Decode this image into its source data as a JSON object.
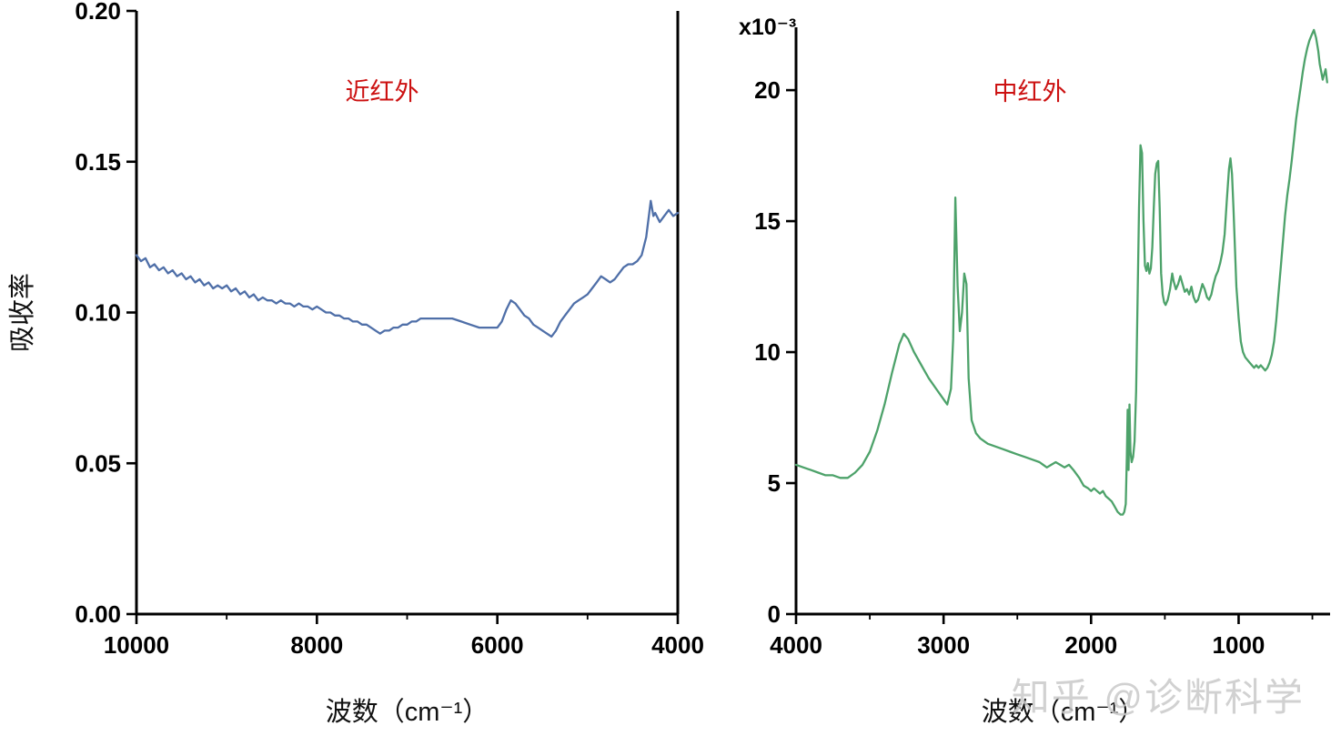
{
  "watermark": {
    "text": "知乎 @诊断科学"
  },
  "chart_data": [
    {
      "type": "line",
      "title": "近红外",
      "title_color": "#cc1111",
      "line_color": "#4f6fa8",
      "xlabel": "波数（cm⁻¹）",
      "ylabel": "吸收率",
      "xlim": [
        10000,
        4000
      ],
      "ylim": [
        0,
        0.2
      ],
      "x_ticks": [
        10000,
        8000,
        6000,
        4000
      ],
      "x_tick_labels": [
        "10000",
        "8000",
        "6000",
        "4000"
      ],
      "x_minor_ticks": [
        9000,
        7000,
        5000
      ],
      "y_ticks": [
        0,
        0.05,
        0.1,
        0.15,
        0.2
      ],
      "y_tick_labels": [
        "0.00",
        "0.05",
        "0.10",
        "0.15",
        "0.20"
      ],
      "points": [
        [
          10000,
          0.119
        ],
        [
          9950,
          0.117
        ],
        [
          9900,
          0.118
        ],
        [
          9850,
          0.115
        ],
        [
          9800,
          0.116
        ],
        [
          9750,
          0.114
        ],
        [
          9700,
          0.115
        ],
        [
          9650,
          0.113
        ],
        [
          9600,
          0.114
        ],
        [
          9550,
          0.112
        ],
        [
          9500,
          0.113
        ],
        [
          9450,
          0.111
        ],
        [
          9400,
          0.112
        ],
        [
          9350,
          0.11
        ],
        [
          9300,
          0.111
        ],
        [
          9250,
          0.109
        ],
        [
          9200,
          0.11
        ],
        [
          9150,
          0.108
        ],
        [
          9100,
          0.109
        ],
        [
          9050,
          0.108
        ],
        [
          9000,
          0.109
        ],
        [
          8950,
          0.107
        ],
        [
          8900,
          0.108
        ],
        [
          8850,
          0.106
        ],
        [
          8800,
          0.107
        ],
        [
          8750,
          0.105
        ],
        [
          8700,
          0.106
        ],
        [
          8650,
          0.104
        ],
        [
          8600,
          0.105
        ],
        [
          8550,
          0.104
        ],
        [
          8500,
          0.104
        ],
        [
          8450,
          0.103
        ],
        [
          8400,
          0.104
        ],
        [
          8350,
          0.103
        ],
        [
          8300,
          0.103
        ],
        [
          8250,
          0.102
        ],
        [
          8200,
          0.103
        ],
        [
          8150,
          0.102
        ],
        [
          8100,
          0.102
        ],
        [
          8050,
          0.101
        ],
        [
          8000,
          0.102
        ],
        [
          7950,
          0.101
        ],
        [
          7900,
          0.1
        ],
        [
          7850,
          0.1
        ],
        [
          7800,
          0.099
        ],
        [
          7750,
          0.099
        ],
        [
          7700,
          0.098
        ],
        [
          7650,
          0.098
        ],
        [
          7600,
          0.097
        ],
        [
          7550,
          0.097
        ],
        [
          7500,
          0.096
        ],
        [
          7450,
          0.096
        ],
        [
          7400,
          0.095
        ],
        [
          7350,
          0.094
        ],
        [
          7300,
          0.093
        ],
        [
          7250,
          0.094
        ],
        [
          7200,
          0.094
        ],
        [
          7150,
          0.095
        ],
        [
          7100,
          0.095
        ],
        [
          7050,
          0.096
        ],
        [
          7000,
          0.096
        ],
        [
          6950,
          0.097
        ],
        [
          6900,
          0.097
        ],
        [
          6850,
          0.098
        ],
        [
          6800,
          0.098
        ],
        [
          6700,
          0.098
        ],
        [
          6600,
          0.098
        ],
        [
          6500,
          0.098
        ],
        [
          6400,
          0.097
        ],
        [
          6300,
          0.096
        ],
        [
          6200,
          0.095
        ],
        [
          6100,
          0.095
        ],
        [
          6000,
          0.095
        ],
        [
          5950,
          0.097
        ],
        [
          5900,
          0.101
        ],
        [
          5850,
          0.104
        ],
        [
          5800,
          0.103
        ],
        [
          5750,
          0.101
        ],
        [
          5700,
          0.099
        ],
        [
          5650,
          0.098
        ],
        [
          5600,
          0.096
        ],
        [
          5550,
          0.095
        ],
        [
          5500,
          0.094
        ],
        [
          5450,
          0.093
        ],
        [
          5400,
          0.092
        ],
        [
          5350,
          0.094
        ],
        [
          5300,
          0.097
        ],
        [
          5250,
          0.099
        ],
        [
          5200,
          0.101
        ],
        [
          5150,
          0.103
        ],
        [
          5100,
          0.104
        ],
        [
          5050,
          0.105
        ],
        [
          5000,
          0.106
        ],
        [
          4950,
          0.108
        ],
        [
          4900,
          0.11
        ],
        [
          4850,
          0.112
        ],
        [
          4800,
          0.111
        ],
        [
          4750,
          0.11
        ],
        [
          4700,
          0.111
        ],
        [
          4650,
          0.113
        ],
        [
          4600,
          0.115
        ],
        [
          4550,
          0.116
        ],
        [
          4500,
          0.116
        ],
        [
          4450,
          0.117
        ],
        [
          4400,
          0.119
        ],
        [
          4350,
          0.125
        ],
        [
          4300,
          0.137
        ],
        [
          4270,
          0.132
        ],
        [
          4250,
          0.133
        ],
        [
          4200,
          0.13
        ],
        [
          4150,
          0.132
        ],
        [
          4100,
          0.134
        ],
        [
          4050,
          0.132
        ],
        [
          4000,
          0.133
        ]
      ]
    },
    {
      "type": "line",
      "title": "中红外",
      "title_color": "#cc1111",
      "line_color": "#4da26a",
      "xlabel": "波数（cm⁻¹）",
      "scale_label": "x10⁻³",
      "xlim": [
        4000,
        380
      ],
      "ylim": [
        0,
        22.4
      ],
      "x_ticks": [
        4000,
        3000,
        2000,
        1000
      ],
      "x_tick_labels": [
        "4000",
        "3000",
        "2000",
        "1000"
      ],
      "x_minor_ticks": [
        3500,
        2500,
        1500,
        500
      ],
      "y_ticks": [
        0,
        5,
        10,
        15,
        20
      ],
      "y_tick_labels": [
        "0",
        "5",
        "10",
        "15",
        "20"
      ],
      "points": [
        [
          4000,
          5.7
        ],
        [
          3950,
          5.6
        ],
        [
          3900,
          5.5
        ],
        [
          3850,
          5.4
        ],
        [
          3800,
          5.3
        ],
        [
          3750,
          5.3
        ],
        [
          3700,
          5.2
        ],
        [
          3650,
          5.2
        ],
        [
          3600,
          5.4
        ],
        [
          3550,
          5.7
        ],
        [
          3500,
          6.2
        ],
        [
          3450,
          7.0
        ],
        [
          3400,
          8.0
        ],
        [
          3350,
          9.2
        ],
        [
          3300,
          10.3
        ],
        [
          3270,
          10.7
        ],
        [
          3240,
          10.5
        ],
        [
          3200,
          10.0
        ],
        [
          3150,
          9.5
        ],
        [
          3100,
          9.0
        ],
        [
          3050,
          8.6
        ],
        [
          3000,
          8.2
        ],
        [
          2975,
          8.0
        ],
        [
          2950,
          8.6
        ],
        [
          2935,
          10.5
        ],
        [
          2920,
          15.9
        ],
        [
          2905,
          12.5
        ],
        [
          2890,
          10.8
        ],
        [
          2875,
          11.5
        ],
        [
          2860,
          13.0
        ],
        [
          2845,
          12.6
        ],
        [
          2830,
          9.0
        ],
        [
          2810,
          7.4
        ],
        [
          2780,
          6.9
        ],
        [
          2750,
          6.7
        ],
        [
          2700,
          6.5
        ],
        [
          2650,
          6.4
        ],
        [
          2600,
          6.3
        ],
        [
          2550,
          6.2
        ],
        [
          2500,
          6.1
        ],
        [
          2450,
          6.0
        ],
        [
          2400,
          5.9
        ],
        [
          2350,
          5.8
        ],
        [
          2300,
          5.6
        ],
        [
          2270,
          5.7
        ],
        [
          2240,
          5.8
        ],
        [
          2210,
          5.7
        ],
        [
          2180,
          5.6
        ],
        [
          2150,
          5.7
        ],
        [
          2120,
          5.5
        ],
        [
          2080,
          5.2
        ],
        [
          2050,
          4.9
        ],
        [
          2020,
          4.8
        ],
        [
          2000,
          4.7
        ],
        [
          1980,
          4.8
        ],
        [
          1960,
          4.7
        ],
        [
          1940,
          4.6
        ],
        [
          1920,
          4.7
        ],
        [
          1900,
          4.5
        ],
        [
          1880,
          4.4
        ],
        [
          1860,
          4.3
        ],
        [
          1840,
          4.1
        ],
        [
          1820,
          3.9
        ],
        [
          1800,
          3.8
        ],
        [
          1785,
          3.8
        ],
        [
          1775,
          3.9
        ],
        [
          1765,
          4.2
        ],
        [
          1758,
          6.0
        ],
        [
          1752,
          7.8
        ],
        [
          1746,
          5.5
        ],
        [
          1740,
          8.0
        ],
        [
          1733,
          6.2
        ],
        [
          1725,
          5.8
        ],
        [
          1715,
          6.0
        ],
        [
          1705,
          6.6
        ],
        [
          1695,
          8.5
        ],
        [
          1685,
          12.0
        ],
        [
          1675,
          15.5
        ],
        [
          1665,
          17.9
        ],
        [
          1655,
          17.6
        ],
        [
          1645,
          15.0
        ],
        [
          1635,
          13.3
        ],
        [
          1625,
          13.1
        ],
        [
          1615,
          13.4
        ],
        [
          1605,
          13.0
        ],
        [
          1595,
          13.2
        ],
        [
          1585,
          14.0
        ],
        [
          1575,
          15.5
        ],
        [
          1565,
          16.8
        ],
        [
          1555,
          17.2
        ],
        [
          1545,
          17.3
        ],
        [
          1535,
          15.5
        ],
        [
          1525,
          13.0
        ],
        [
          1515,
          12.2
        ],
        [
          1505,
          11.9
        ],
        [
          1495,
          11.8
        ],
        [
          1480,
          12.0
        ],
        [
          1465,
          12.4
        ],
        [
          1450,
          13.0
        ],
        [
          1440,
          12.7
        ],
        [
          1425,
          12.4
        ],
        [
          1410,
          12.6
        ],
        [
          1395,
          12.9
        ],
        [
          1380,
          12.6
        ],
        [
          1365,
          12.3
        ],
        [
          1350,
          12.4
        ],
        [
          1335,
          12.2
        ],
        [
          1320,
          12.5
        ],
        [
          1305,
          12.1
        ],
        [
          1290,
          11.9
        ],
        [
          1275,
          12.0
        ],
        [
          1260,
          12.3
        ],
        [
          1245,
          12.6
        ],
        [
          1230,
          12.4
        ],
        [
          1215,
          12.1
        ],
        [
          1200,
          12.0
        ],
        [
          1185,
          12.2
        ],
        [
          1170,
          12.6
        ],
        [
          1155,
          12.9
        ],
        [
          1140,
          13.1
        ],
        [
          1125,
          13.4
        ],
        [
          1110,
          13.8
        ],
        [
          1095,
          14.5
        ],
        [
          1080,
          15.8
        ],
        [
          1065,
          17.0
        ],
        [
          1055,
          17.4
        ],
        [
          1045,
          16.8
        ],
        [
          1035,
          15.5
        ],
        [
          1025,
          14.0
        ],
        [
          1015,
          12.5
        ],
        [
          1000,
          11.3
        ],
        [
          985,
          10.4
        ],
        [
          970,
          10.0
        ],
        [
          955,
          9.8
        ],
        [
          940,
          9.7
        ],
        [
          925,
          9.6
        ],
        [
          910,
          9.5
        ],
        [
          895,
          9.4
        ],
        [
          880,
          9.5
        ],
        [
          865,
          9.4
        ],
        [
          850,
          9.5
        ],
        [
          835,
          9.4
        ],
        [
          820,
          9.3
        ],
        [
          805,
          9.4
        ],
        [
          790,
          9.6
        ],
        [
          775,
          9.9
        ],
        [
          760,
          10.4
        ],
        [
          745,
          11.2
        ],
        [
          730,
          12.2
        ],
        [
          715,
          13.2
        ],
        [
          700,
          14.2
        ],
        [
          685,
          15.2
        ],
        [
          670,
          16.0
        ],
        [
          655,
          16.6
        ],
        [
          640,
          17.3
        ],
        [
          625,
          18.1
        ],
        [
          610,
          18.9
        ],
        [
          595,
          19.5
        ],
        [
          580,
          20.1
        ],
        [
          565,
          20.7
        ],
        [
          550,
          21.2
        ],
        [
          535,
          21.6
        ],
        [
          520,
          21.9
        ],
        [
          505,
          22.1
        ],
        [
          490,
          22.3
        ],
        [
          475,
          22.0
        ],
        [
          460,
          21.5
        ],
        [
          450,
          21.0
        ],
        [
          440,
          20.7
        ],
        [
          430,
          20.4
        ],
        [
          420,
          20.6
        ],
        [
          410,
          20.8
        ],
        [
          400,
          20.3
        ]
      ]
    }
  ]
}
